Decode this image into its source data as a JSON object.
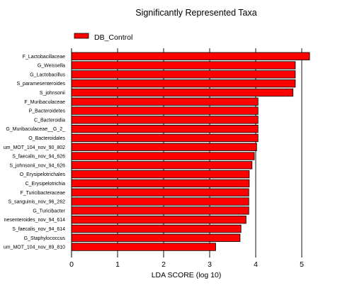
{
  "chart_data": {
    "type": "bar",
    "orientation": "horizontal",
    "title": "Significantly Represented Taxa",
    "xlabel": "LDA SCORE (log 10)",
    "ylabel": "",
    "xlim": [
      0,
      5.4
    ],
    "xticks": [
      0,
      1,
      2,
      3,
      4,
      5
    ],
    "grid": "vertical gridlines at major ticks",
    "legend_position": "top-left",
    "categories": [
      "F_Lactobacillaceae",
      "G_Weissella",
      "G_Lactobacillus",
      "S_paramesenteroides",
      "S_johnsonii",
      "F_Muribaculaceae",
      "P_Bacteroidetes",
      "C_Bacteroidia",
      "G_Muribaculaceae__G_2_",
      "O_Bacteroidales",
      "um_MOT_104_nov_90_802",
      "S_faecalis_nov_94_626",
      "S_johnsonii_nov_94_626",
      "O_Erysipelotrichales",
      "C_Erysipelotrichia",
      "F_Turicibacteraceae",
      "S_sanguinis_nov_96_262",
      "G_Turicibacter",
      "nesenteroides_nov_94_614",
      "S_faecalis_nov_94_614",
      "G_Staphylococcus",
      "um_MOT_104_nov_89_810"
    ],
    "series": [
      {
        "name": "DB_Control",
        "color": "#ff0000",
        "values": [
          5.17,
          4.86,
          4.86,
          4.86,
          4.81,
          4.05,
          4.05,
          4.05,
          4.05,
          4.05,
          4.02,
          3.97,
          3.92,
          3.86,
          3.86,
          3.85,
          3.85,
          3.85,
          3.79,
          3.68,
          3.66,
          3.13
        ]
      }
    ]
  }
}
